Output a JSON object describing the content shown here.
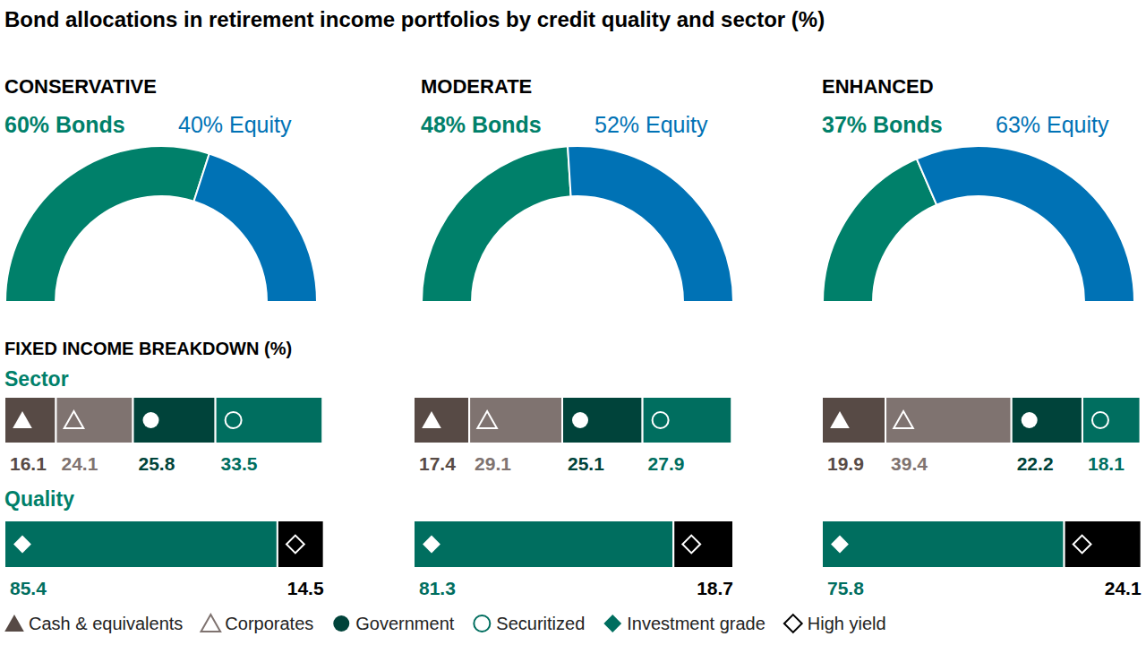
{
  "title": "Bond allocations in retirement income portfolios by credit quality and sector (%)",
  "breakdown_title": "FIXED INCOME BREAKDOWN (%)",
  "sector_title": "Sector",
  "quality_title": "Quality",
  "chart_data": [
    {
      "type": "pie",
      "title": "CONSERVATIVE",
      "values": [
        60,
        40
      ],
      "value_labels": [
        "60% Bonds",
        "40% Equity"
      ],
      "colors": [
        "#00806a",
        "#0072b5"
      ]
    },
    {
      "type": "bar",
      "orientation": "horizontal",
      "stacked": true,
      "data_labels": true,
      "tick_labels": false,
      "xlim": [
        0,
        100
      ],
      "series": [
        {
          "name": "Cash & equivalents",
          "color": "#574a45",
          "marker": "triangle",
          "values": [
            16.1
          ]
        },
        {
          "name": "Corporates",
          "color": "#7f7370",
          "marker": "triangle-open",
          "values": [
            24.1
          ]
        },
        {
          "name": "Government",
          "color": "#00433a",
          "marker": "circle",
          "values": [
            25.8
          ]
        },
        {
          "name": "Securitized",
          "color": "#006e5f",
          "marker": "circle-open",
          "values": [
            33.5
          ]
        }
      ]
    },
    {
      "type": "bar",
      "orientation": "horizontal",
      "stacked": true,
      "data_labels": true,
      "tick_labels": false,
      "xlim": [
        0,
        100
      ],
      "series": [
        {
          "name": "Investment grade",
          "color": "#006e5f",
          "marker": "diamond",
          "values": [
            85.4
          ]
        },
        {
          "name": "High yield",
          "color": "#000000",
          "marker": "diamond-open",
          "values": [
            14.5
          ]
        }
      ]
    },
    {
      "type": "pie",
      "title": "MODERATE",
      "values": [
        48,
        52
      ],
      "value_labels": [
        "48% Bonds",
        "52% Equity"
      ],
      "colors": [
        "#00806a",
        "#0072b5"
      ]
    },
    {
      "type": "bar",
      "orientation": "horizontal",
      "stacked": true,
      "data_labels": true,
      "tick_labels": false,
      "xlim": [
        0,
        100
      ],
      "series": [
        {
          "name": "Cash & equivalents",
          "color": "#574a45",
          "marker": "triangle",
          "values": [
            17.4
          ]
        },
        {
          "name": "Corporates",
          "color": "#7f7370",
          "marker": "triangle-open",
          "values": [
            29.1
          ]
        },
        {
          "name": "Government",
          "color": "#00433a",
          "marker": "circle",
          "values": [
            25.1
          ]
        },
        {
          "name": "Securitized",
          "color": "#006e5f",
          "marker": "circle-open",
          "values": [
            27.9
          ]
        }
      ]
    },
    {
      "type": "bar",
      "orientation": "horizontal",
      "stacked": true,
      "data_labels": true,
      "tick_labels": false,
      "xlim": [
        0,
        100
      ],
      "series": [
        {
          "name": "Investment grade",
          "color": "#006e5f",
          "marker": "diamond",
          "values": [
            81.3
          ]
        },
        {
          "name": "High yield",
          "color": "#000000",
          "marker": "diamond-open",
          "values": [
            18.7
          ]
        }
      ]
    },
    {
      "type": "pie",
      "title": "ENHANCED",
      "values": [
        37,
        63
      ],
      "value_labels": [
        "37% Bonds",
        "63% Equity"
      ],
      "colors": [
        "#00806a",
        "#0072b5"
      ]
    },
    {
      "type": "bar",
      "orientation": "horizontal",
      "stacked": true,
      "data_labels": true,
      "tick_labels": false,
      "xlim": [
        0,
        100
      ],
      "series": [
        {
          "name": "Cash & equivalents",
          "color": "#574a45",
          "marker": "triangle",
          "values": [
            19.9
          ]
        },
        {
          "name": "Corporates",
          "color": "#7f7370",
          "marker": "triangle-open",
          "values": [
            39.4
          ]
        },
        {
          "name": "Government",
          "color": "#00433a",
          "marker": "circle",
          "values": [
            22.2
          ]
        },
        {
          "name": "Securitized",
          "color": "#006e5f",
          "marker": "circle-open",
          "values": [
            18.1
          ]
        }
      ]
    },
    {
      "type": "bar",
      "orientation": "horizontal",
      "stacked": true,
      "data_labels": true,
      "tick_labels": false,
      "xlim": [
        0,
        100
      ],
      "series": [
        {
          "name": "Investment grade",
          "color": "#006e5f",
          "marker": "diamond",
          "values": [
            75.8
          ]
        },
        {
          "name": "High yield",
          "color": "#000000",
          "marker": "diamond-open",
          "values": [
            24.1
          ]
        }
      ]
    }
  ]
}
